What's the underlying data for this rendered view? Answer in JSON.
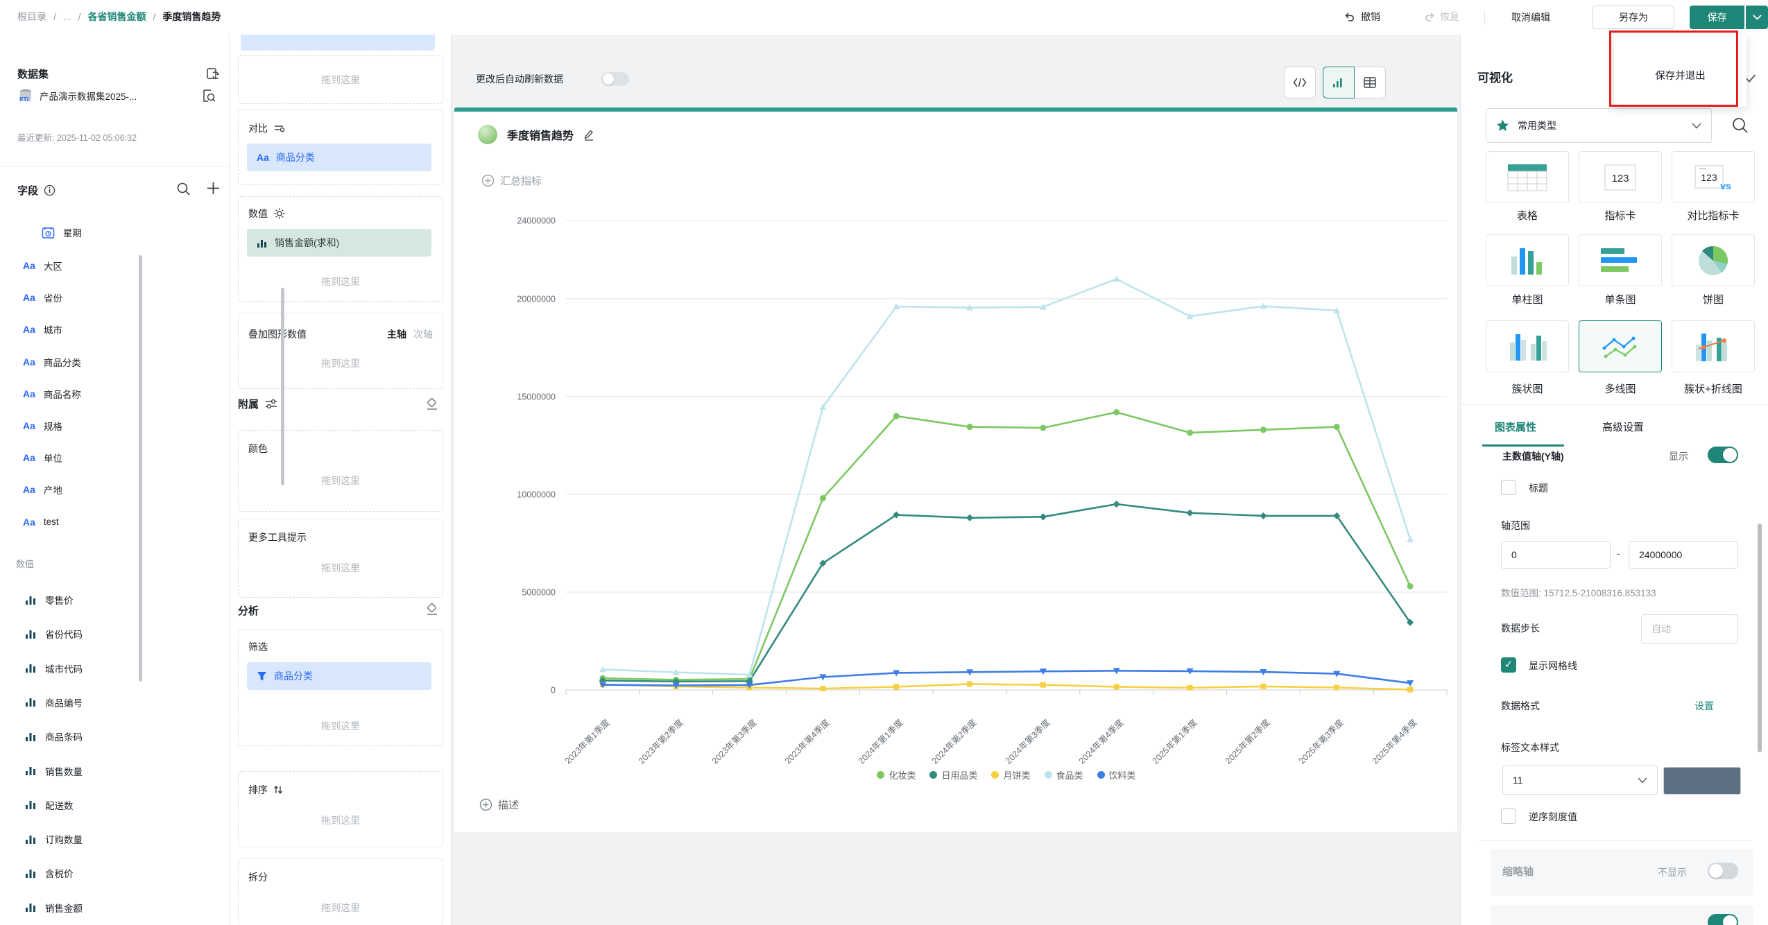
{
  "topbar": {
    "breadcrumb": [
      "根目录",
      "...",
      "各省销售金额",
      "季度销售趋势"
    ],
    "undo": "撤销",
    "redo": "恢复",
    "cancel_edit": "取消编辑",
    "save_as": "另存为",
    "save": "保存",
    "save_menu_item": "保存并退出"
  },
  "dataset_panel": {
    "title": "数据集",
    "dataset_name": "产品演示数据集2025-...",
    "updated": "最近更新: 2025-11-02 05:06:32",
    "fields_title": "字段",
    "date_fields": [
      "星期"
    ],
    "dim_fields": [
      "大区",
      "省份",
      "城市",
      "商品分类",
      "商品名称",
      "规格",
      "单位",
      "产地",
      "test"
    ],
    "measures_label": "数值",
    "measure_fields": [
      "零售价",
      "省份代码",
      "城市代码",
      "商品编号",
      "商品条码",
      "销售数量",
      "配送数",
      "订购数量",
      "含税价",
      "销售金额"
    ]
  },
  "config_panel": {
    "drop_hint": "拖到这里",
    "compare_label": "对比",
    "compare_chip": "商品分类",
    "value_label": "数值",
    "value_chip": "销售金额(求和)",
    "overlay_label": "叠加图形数值",
    "overlay_primary": "主轴",
    "overlay_secondary": "次轴",
    "auxiliary_label": "附属",
    "color_label": "颜色",
    "tooltip_label": "更多工具提示",
    "analysis_label": "分析",
    "filter_label": "筛选",
    "filter_chip": "商品分类",
    "sort_label": "排序",
    "split_label": "拆分"
  },
  "canvas": {
    "auto_refresh": "更改后自动刷新数据",
    "chart_title": "季度销售趋势",
    "summary_label": "汇总指标",
    "desc_label": "描述"
  },
  "viz": {
    "title": "可视化",
    "type_select": "常用类型",
    "types": [
      {
        "label": "表格",
        "icon": "table"
      },
      {
        "label": "指标卡",
        "icon": "number"
      },
      {
        "label": "对比指标卡",
        "icon": "number-vs"
      },
      {
        "label": "单柱图",
        "icon": "bar"
      },
      {
        "label": "单条图",
        "icon": "hbar"
      },
      {
        "label": "饼图",
        "icon": "pie"
      },
      {
        "label": "簇状图",
        "icon": "bar-group"
      },
      {
        "label": "多线图",
        "icon": "multi-line",
        "selected": true
      },
      {
        "label": "簇状+折线图",
        "icon": "bar-line"
      }
    ],
    "tabs": [
      "图表属性",
      "高级设置"
    ],
    "settings": {
      "y_axis": "主数值轴(Y轴)",
      "show": "显示",
      "title_cb": "标题",
      "axis_range": "轴范围",
      "range_min": "0",
      "range_sep": "-",
      "range_max": "24000000",
      "value_range": "数值范围: 15712.5-21008316.853133",
      "step_label": "数据步长",
      "step_placeholder": "自动",
      "grid_cb": "显示网格线",
      "format_label": "数据格式",
      "format_action": "设置",
      "label_style": "标签文本样式",
      "font_size": "11",
      "swatch_color": "#5d7082",
      "reverse_cb": "逆序刻度值",
      "mini_axis": "缩略轴",
      "mini_axis_state": "不显示"
    }
  },
  "chart_data": {
    "type": "line",
    "title": "季度销售趋势",
    "categories": [
      "2023年第1季度",
      "2023年第2季度",
      "2023年第3季度",
      "2023年第4季度",
      "2024年第1季度",
      "2024年第2季度",
      "2024年第3季度",
      "2024年第4季度",
      "2025年第1季度",
      "2025年第2季度",
      "2025年第3季度",
      "2025年第4季度"
    ],
    "series": [
      {
        "name": "化妆类",
        "color": "#7cc862",
        "marker": "circle",
        "values": [
          600000,
          520000,
          560000,
          9800000,
          14000000,
          13450000,
          13400000,
          14200000,
          13150000,
          13300000,
          13450000,
          5300000
        ]
      },
      {
        "name": "日用品类",
        "color": "#338a7e",
        "marker": "diamond",
        "values": [
          480000,
          430000,
          450000,
          6480000,
          8950000,
          8800000,
          8850000,
          9500000,
          9050000,
          8900000,
          8900000,
          3450000
        ]
      },
      {
        "name": "月饼类",
        "color": "#f6d043",
        "marker": "square",
        "values": [
          280000,
          180000,
          120000,
          70000,
          160000,
          300000,
          260000,
          160000,
          110000,
          180000,
          120000,
          15712.5
        ]
      },
      {
        "name": "食品类",
        "color": "#bde4ed",
        "marker": "triangle",
        "values": [
          1050000,
          900000,
          780000,
          14470000,
          19600000,
          19550000,
          19580000,
          21008316.853133,
          19100000,
          19620000,
          19400000,
          7700000
        ]
      },
      {
        "name": "饮料类",
        "color": "#3e7de6",
        "marker": "triangle-down",
        "values": [
          260000,
          230000,
          250000,
          660000,
          870000,
          910000,
          950000,
          980000,
          960000,
          920000,
          830000,
          350000
        ]
      }
    ],
    "ylim": [
      0,
      24000000
    ],
    "yticks": [
      0,
      5000000,
      10000000,
      15000000,
      20000000,
      24000000
    ],
    "grid": true,
    "legend_position": "bottom"
  }
}
